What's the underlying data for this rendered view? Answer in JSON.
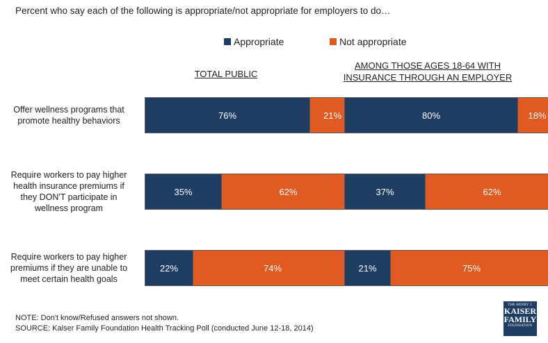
{
  "title": "Percent who say each of the following is appropriate/not appropriate for employers to do…",
  "chart_data": {
    "type": "bar",
    "orientation": "horizontal-stacked",
    "categories": [
      "Offer wellness programs that promote healthy behaviors",
      "Require workers to pay higher health insurance premiums if they DON'T participate in wellness program",
      "Require workers to pay higher premiums if they are unable to meet certain health goals"
    ],
    "category_lines": [
      [
        "Offer wellness programs that",
        "promote healthy behaviors"
      ],
      [
        "Require workers to pay higher",
        "health insurance premiums if",
        "they DON'T participate in",
        "wellness program"
      ],
      [
        "Require workers to pay higher",
        "premiums if they are unable to",
        "meet certain health goals"
      ]
    ],
    "legend": [
      {
        "name": "Appropriate",
        "color": "#1f3d63"
      },
      {
        "name": "Not appropriate",
        "color": "#e05a22"
      }
    ],
    "legend_position": "top-right",
    "xlim": [
      0,
      100
    ],
    "panels": [
      {
        "title": "TOTAL PUBLIC",
        "series": [
          {
            "name": "Appropriate",
            "values": [
              76,
              35,
              22
            ]
          },
          {
            "name": "Not appropriate",
            "values": [
              21,
              62,
              74
            ]
          }
        ]
      },
      {
        "title_lines": [
          "AMONG THOSE AGES 18-64 WITH",
          "INSURANCE THROUGH AN EMPLOYER"
        ],
        "series": [
          {
            "name": "Appropriate",
            "values": [
              80,
              37,
              21
            ]
          },
          {
            "name": "Not appropriate",
            "values": [
              18,
              62,
              75
            ]
          }
        ]
      }
    ]
  },
  "footer": {
    "note": "NOTE: Don't know/Refused answers not shown.",
    "source": "SOURCE: Kaiser Family Foundation Health Tracking Poll (conducted June 12-18, 2014)"
  },
  "logo": {
    "line1": "THE HENRY J.",
    "line2": "KAISER",
    "line3": "FAMILY",
    "line4": "FOUNDATION"
  }
}
